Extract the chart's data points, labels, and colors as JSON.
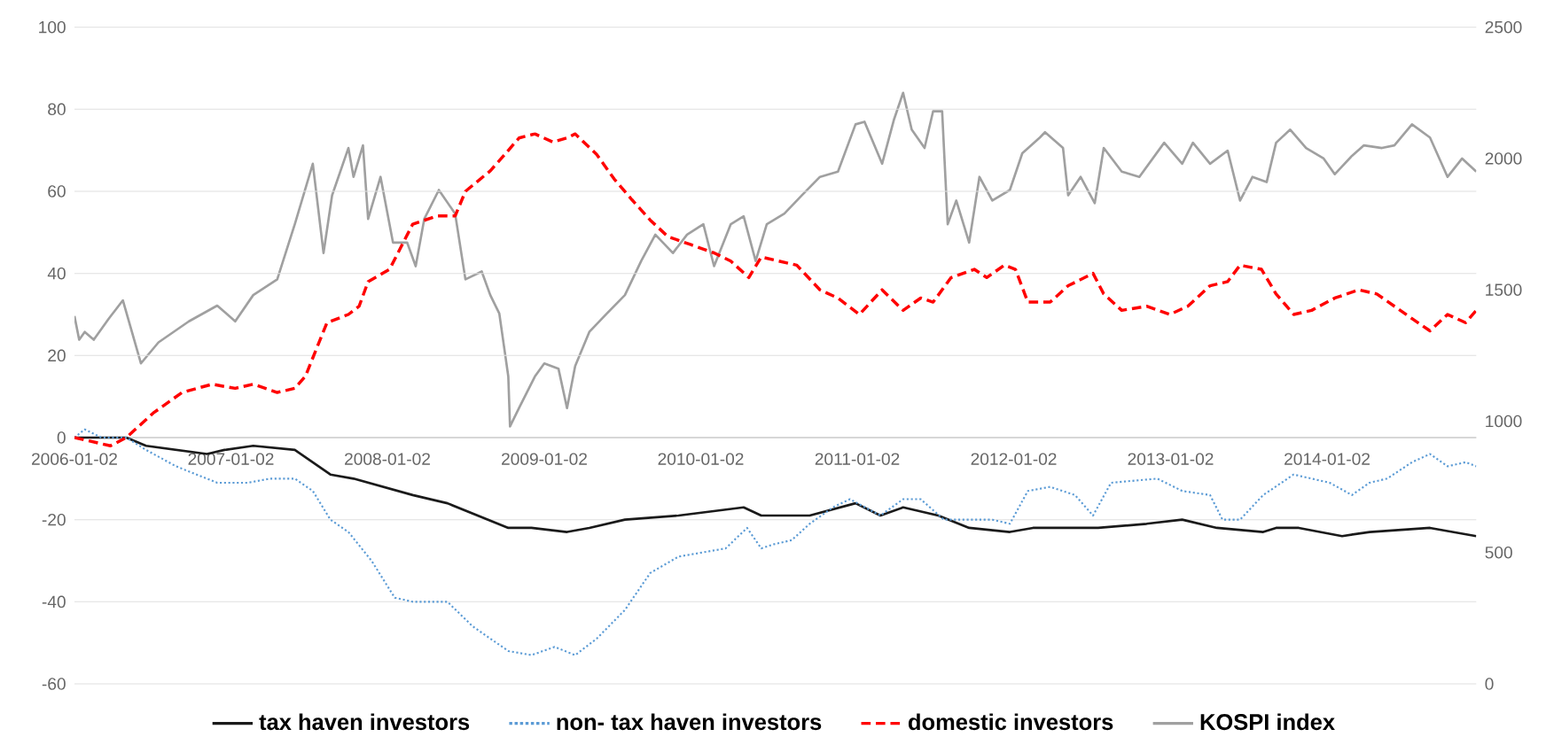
{
  "chart_data": {
    "type": "line",
    "legend": "bottom",
    "grid": "y",
    "xlim": [
      "2006-01-02",
      "2014-12-16"
    ],
    "xticks": [
      "2006-01-02",
      "2007-01-02",
      "2008-01-02",
      "2009-01-02",
      "2010-01-02",
      "2011-01-02",
      "2012-01-02",
      "2013-01-02",
      "2014-01-02"
    ],
    "ylim": [
      -60,
      100
    ],
    "yticks": [
      -60,
      -40,
      -20,
      0,
      20,
      40,
      60,
      80,
      100
    ],
    "y2lim": [
      0,
      2500
    ],
    "y2ticks": [
      0,
      500,
      1000,
      1500,
      2000,
      2500
    ],
    "series": [
      {
        "name": "tax haven investors",
        "color": "#1a1a1a",
        "line_style": "solid",
        "axis": "y",
        "x": [
          "2006-01-02",
          "2006-05-03",
          "2006-06-18",
          "2006-11-07",
          "2006-12-18",
          "2007-02-23",
          "2007-05-31",
          "2007-08-22",
          "2007-10-15",
          "2008-03-01",
          "2008-05-21",
          "2008-10-10",
          "2008-12-03",
          "2009-02-24",
          "2009-04-17",
          "2009-07-09",
          "2009-11-11",
          "2010-04-12",
          "2010-05-23",
          "2010-08-02",
          "2010-09-13",
          "2010-12-29",
          "2011-02-25",
          "2011-04-19",
          "2011-07-10",
          "2011-09-20",
          "2011-12-24",
          "2012-02-16",
          "2012-07-17",
          "2012-11-07",
          "2013-01-29",
          "2013-04-20",
          "2013-08-06",
          "2013-09-05",
          "2013-10-28",
          "2014-02-06",
          "2014-04-11",
          "2014-08-30",
          "2014-12-16"
        ],
        "values": [
          0,
          0,
          -2,
          -4,
          -3,
          -2,
          -3,
          -9,
          -10,
          -14,
          -16,
          -22,
          -22,
          -23,
          -22,
          -20,
          -19,
          -17,
          -19,
          -19,
          -19,
          -16,
          -19,
          -17,
          -19,
          -22,
          -23,
          -22,
          -22,
          -21,
          -20,
          -22,
          -23,
          -22,
          -22,
          -24,
          -23,
          -22,
          -24
        ]
      },
      {
        "name": "non- tax haven investors",
        "color": "#5b9bd5",
        "line_style": "dotted",
        "axis": "y",
        "x": [
          "2006-01-02",
          "2006-01-26",
          "2006-03-06",
          "2006-05-03",
          "2006-06-18",
          "2006-08-27",
          "2006-12-01",
          "2007-02-10",
          "2007-04-03",
          "2007-05-31",
          "2007-07-12",
          "2007-08-22",
          "2007-10-03",
          "2007-11-26",
          "2008-01-19",
          "2008-03-01",
          "2008-05-21",
          "2008-07-19",
          "2008-10-10",
          "2008-12-03",
          "2009-01-26",
          "2009-03-15",
          "2009-05-04",
          "2009-07-09",
          "2009-09-06",
          "2009-11-11",
          "2010-03-01",
          "2010-04-20",
          "2010-05-23",
          "2010-06-21",
          "2010-08-02",
          "2010-09-13",
          "2010-11-06",
          "2010-12-16",
          "2011-02-25",
          "2011-04-19",
          "2011-05-30",
          "2011-07-23",
          "2011-09-20",
          "2011-11-13",
          "2011-12-24",
          "2012-02-04",
          "2012-03-27",
          "2012-05-24",
          "2012-07-05",
          "2012-08-16",
          "2012-12-02",
          "2013-01-29",
          "2013-04-04",
          "2013-05-03",
          "2013-06-13",
          "2013-08-06",
          "2013-10-16",
          "2014-01-08",
          "2014-03-01",
          "2014-04-11",
          "2014-05-22",
          "2014-07-19",
          "2014-08-30",
          "2014-10-10",
          "2014-11-21",
          "2014-12-16"
        ],
        "values": [
          0,
          2,
          0,
          0,
          -3,
          -7,
          -11,
          -11,
          -10,
          -10,
          -13,
          -20,
          -23,
          -30,
          -39,
          -40,
          -40,
          -46,
          -52,
          -53,
          -51,
          -53,
          -49,
          -42,
          -33,
          -29,
          -27,
          -22,
          -27,
          -26,
          -25,
          -21,
          -17,
          -15,
          -19,
          -15,
          -15,
          -20,
          -20,
          -20,
          -21,
          -13,
          -12,
          -14,
          -19,
          -11,
          -10,
          -13,
          -14,
          -20,
          -20,
          -14,
          -9,
          -11,
          -14,
          -11,
          -10,
          -6,
          -4,
          -7,
          -6,
          -7
        ]
      },
      {
        "name": "domestic investors",
        "color": "#ff0000",
        "line_style": "dashed",
        "axis": "y",
        "x": [
          "2006-01-02",
          "2006-03-27",
          "2006-05-03",
          "2006-07-05",
          "2006-09-10",
          "2006-11-19",
          "2007-01-12",
          "2007-02-23",
          "2007-04-20",
          "2007-05-31",
          "2007-06-25",
          "2007-08-14",
          "2007-10-03",
          "2007-10-28",
          "2007-11-18",
          "2008-01-07",
          "2008-03-01",
          "2008-04-27",
          "2008-06-08",
          "2008-07-02",
          "2008-08-29",
          "2008-10-02",
          "2008-11-04",
          "2008-12-11",
          "2009-01-22",
          "2009-02-24",
          "2009-03-15",
          "2009-05-04",
          "2009-06-14",
          "2009-07-25",
          "2009-09-06",
          "2009-10-17",
          "2009-12-10",
          "2010-02-02",
          "2010-03-13",
          "2010-04-24",
          "2010-05-23",
          "2010-07-03",
          "2010-08-14",
          "2010-10-07",
          "2010-11-18",
          "2011-01-07",
          "2011-03-01",
          "2011-04-19",
          "2011-05-30",
          "2011-06-28",
          "2011-08-09",
          "2011-10-02",
          "2011-10-31",
          "2011-12-11",
          "2012-01-06",
          "2012-02-04",
          "2012-03-27",
          "2012-05-08",
          "2012-07-05",
          "2012-07-30",
          "2012-09-10",
          "2012-11-07",
          "2012-12-31",
          "2013-02-11",
          "2013-04-04",
          "2013-05-15",
          "2013-06-13",
          "2013-08-02",
          "2013-09-05",
          "2013-10-16",
          "2013-11-27",
          "2014-01-20",
          "2014-03-17",
          "2014-04-28",
          "2014-06-08",
          "2014-07-19",
          "2014-08-30",
          "2014-10-10",
          "2014-11-21",
          "2014-12-16"
        ],
        "values": [
          0,
          -2,
          0,
          6,
          11,
          13,
          12,
          13,
          11,
          12,
          15,
          28,
          30,
          32,
          38,
          41,
          52,
          54,
          54,
          60,
          65,
          69,
          73,
          74,
          72,
          73,
          74,
          69,
          63,
          58,
          53,
          49,
          47,
          45,
          43,
          39,
          44,
          43,
          42,
          36,
          34,
          30,
          36,
          31,
          34,
          33,
          39,
          41,
          39,
          42,
          41,
          33,
          33,
          37,
          40,
          35,
          31,
          32,
          30,
          32,
          37,
          38,
          42,
          41,
          35,
          30,
          31,
          34,
          36,
          35,
          32,
          29,
          26,
          30,
          28,
          31
        ]
      },
      {
        "name": "KOSPI index",
        "color": "#a0a0a0",
        "line_style": "solid",
        "axis": "y2",
        "x": [
          "2006-01-02",
          "2006-01-13",
          "2006-01-26",
          "2006-02-16",
          "2006-03-23",
          "2006-04-25",
          "2006-06-06",
          "2006-07-17",
          "2006-09-26",
          "2006-12-01",
          "2007-01-12",
          "2007-02-23",
          "2007-04-20",
          "2007-05-31",
          "2007-07-12",
          "2007-08-06",
          "2007-08-26",
          "2007-10-03",
          "2007-10-15",
          "2007-11-06",
          "2007-11-18",
          "2007-12-17",
          "2008-01-15",
          "2008-02-17",
          "2008-03-08",
          "2008-03-28",
          "2008-05-01",
          "2008-06-08",
          "2008-07-02",
          "2008-08-09",
          "2008-08-29",
          "2008-09-19",
          "2008-10-10",
          "2008-10-14",
          "2008-11-04",
          "2008-12-11",
          "2009-01-02",
          "2009-02-04",
          "2009-02-24",
          "2009-03-15",
          "2009-04-17",
          "2009-05-28",
          "2009-07-09",
          "2009-08-16",
          "2009-09-18",
          "2009-10-29",
          "2009-12-01",
          "2010-01-08",
          "2010-02-02",
          "2010-03-13",
          "2010-04-12",
          "2010-05-10",
          "2010-06-05",
          "2010-07-16",
          "2010-08-26",
          "2010-10-07",
          "2010-11-18",
          "2010-12-29",
          "2011-01-19",
          "2011-03-01",
          "2011-03-29",
          "2011-04-19",
          "2011-05-09",
          "2011-06-08",
          "2011-06-28",
          "2011-07-19",
          "2011-08-01",
          "2011-08-21",
          "2011-09-20",
          "2011-10-14",
          "2011-11-13",
          "2011-12-24",
          "2012-01-22",
          "2012-03-03",
          "2012-03-15",
          "2012-04-26",
          "2012-05-08",
          "2012-06-06",
          "2012-07-09",
          "2012-07-30",
          "2012-09-10",
          "2012-10-21",
          "2012-12-18",
          "2013-01-29",
          "2013-02-23",
          "2013-04-04",
          "2013-05-15",
          "2013-06-13",
          "2013-07-12",
          "2013-08-14",
          "2013-09-05",
          "2013-10-08",
          "2013-11-14",
          "2013-12-25",
          "2014-01-20",
          "2014-03-01",
          "2014-03-29",
          "2014-05-10",
          "2014-06-08",
          "2014-07-19",
          "2014-08-30",
          "2014-10-10",
          "2014-11-13",
          "2014-12-16"
        ],
        "values": [
          1400,
          1310,
          1340,
          1310,
          1390,
          1460,
          1220,
          1300,
          1380,
          1440,
          1380,
          1480,
          1540,
          1750,
          1980,
          1640,
          1860,
          2040,
          1930,
          2050,
          1770,
          1930,
          1680,
          1680,
          1590,
          1770,
          1880,
          1790,
          1540,
          1570,
          1480,
          1410,
          1170,
          980,
          1050,
          1170,
          1220,
          1200,
          1050,
          1210,
          1340,
          1410,
          1480,
          1610,
          1710,
          1640,
          1710,
          1750,
          1590,
          1750,
          1780,
          1610,
          1750,
          1790,
          1860,
          1930,
          1950,
          2130,
          2140,
          1980,
          2150,
          2250,
          2110,
          2040,
          2180,
          2180,
          1750,
          1840,
          1680,
          1930,
          1840,
          1880,
          2020,
          2080,
          2100,
          2040,
          1860,
          1930,
          1830,
          2040,
          1950,
          1930,
          2060,
          1980,
          2060,
          1980,
          2030,
          1840,
          1930,
          1910,
          2060,
          2110,
          2040,
          2000,
          1940,
          2010,
          2050,
          2040,
          2050,
          2130,
          2080,
          1930,
          2000,
          1950
        ]
      }
    ]
  }
}
